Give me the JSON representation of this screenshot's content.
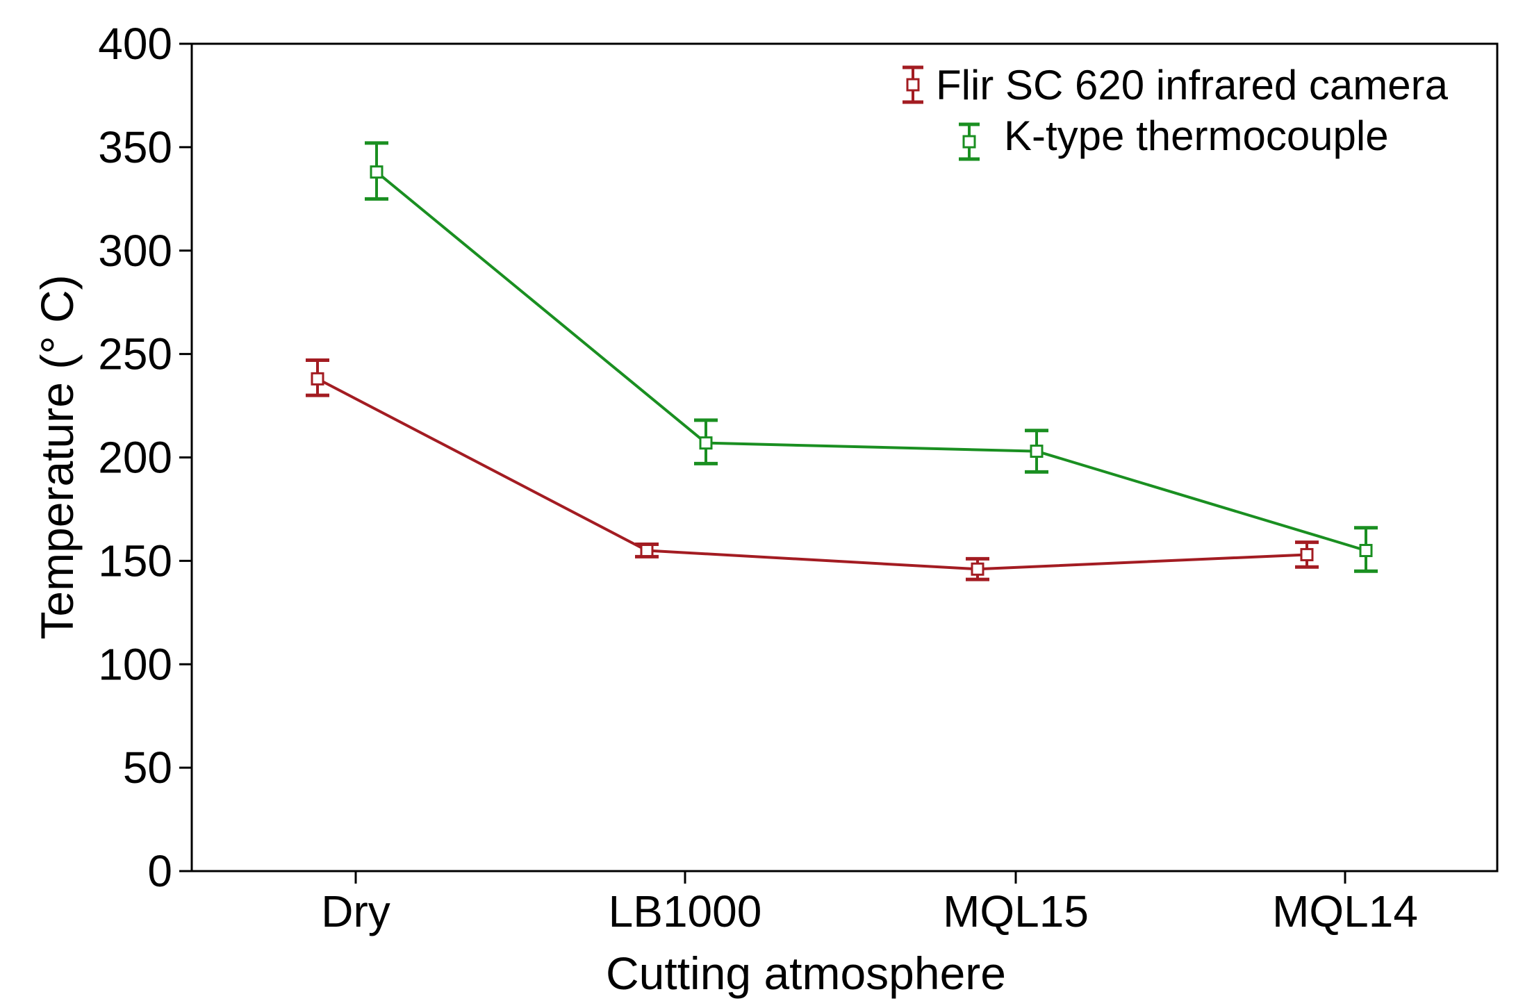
{
  "chart_data": {
    "type": "line",
    "title": "",
    "xlabel": "Cutting atmosphere",
    "ylabel": "Temperature (° C)",
    "categories": [
      "Dry",
      "LB1000",
      "MQL15",
      "MQL14"
    ],
    "ylim": [
      0,
      400
    ],
    "yticks": [
      0,
      50,
      100,
      150,
      200,
      250,
      300,
      350,
      400
    ],
    "grid": false,
    "legend_position": "top-right",
    "series": [
      {
        "name": "Flir SC 620 infrared camera",
        "color": "#a31c22",
        "values": [
          238,
          155,
          146,
          153
        ],
        "error_low": [
          230,
          152,
          141,
          147
        ],
        "error_high": [
          247,
          158,
          151,
          159
        ],
        "marker": "square"
      },
      {
        "name": "K-type thermocouple",
        "color": "#1a8f21",
        "values": [
          338,
          207,
          203,
          155
        ],
        "error_low": [
          325,
          197,
          193,
          145
        ],
        "error_high": [
          352,
          218,
          213,
          166
        ],
        "marker": "square"
      }
    ]
  }
}
